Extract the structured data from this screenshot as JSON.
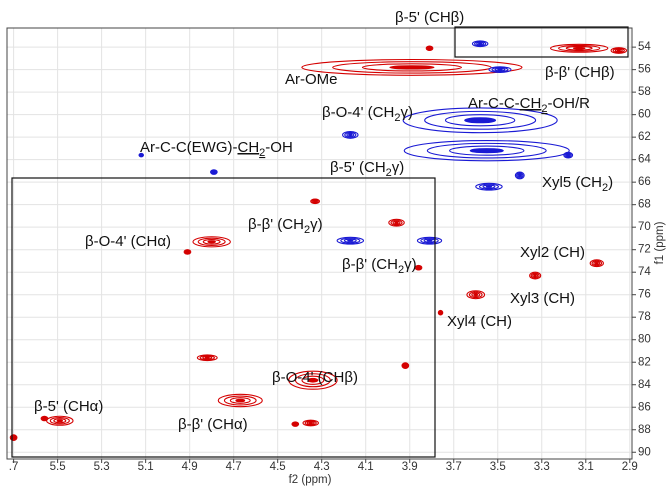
{
  "chart_data": {
    "type": "scatter",
    "xlabel": "f2 (ppm)",
    "ylabel": "f1 (ppm)",
    "xlim": [
      5.73,
      2.89
    ],
    "ylim": [
      52.3,
      90.6
    ],
    "xticks": [
      {
        "value": 5.7,
        "label": ".7"
      },
      5.5,
      5.3,
      5.1,
      4.9,
      4.7,
      4.5,
      4.3,
      4.1,
      3.9,
      3.7,
      3.5,
      3.3,
      3.1,
      2.9
    ],
    "yticks": [
      54,
      56,
      58,
      60,
      62,
      64,
      66,
      68,
      70,
      72,
      74,
      76,
      78,
      80,
      82,
      84,
      86,
      88,
      90
    ],
    "grid": true,
    "series": [
      {
        "color": "#d40000",
        "x": [
          3.89,
          3.81,
          3.13,
          2.95,
          4.8,
          4.91,
          4.33,
          3.96,
          3.86,
          3.05,
          3.33,
          3.6,
          3.76,
          4.82,
          3.92,
          4.34,
          4.67,
          5.49,
          5.56,
          4.35,
          4.42,
          5.7
        ],
        "y": [
          55.8,
          54.1,
          54.1,
          54.3,
          71.3,
          72.2,
          67.7,
          69.6,
          73.6,
          73.2,
          74.3,
          76.0,
          77.6,
          81.6,
          82.3,
          83.6,
          85.4,
          87.2,
          87.0,
          87.4,
          87.5,
          88.7
        ],
        "dx": [
          1.0,
          0.03,
          0.26,
          0.07,
          0.17,
          0.03,
          0.04,
          0.07,
          0.03,
          0.06,
          0.05,
          0.08,
          0.02,
          0.09,
          0.03,
          0.22,
          0.2,
          0.12,
          0.03,
          0.07,
          0.03,
          0.03
        ],
        "dy": [
          1.4,
          0.4,
          0.7,
          0.5,
          0.9,
          0.4,
          0.4,
          0.6,
          0.4,
          0.6,
          0.6,
          0.7,
          0.4,
          0.5,
          0.5,
          1.6,
          1.1,
          0.8,
          0.4,
          0.5,
          0.4,
          0.5
        ]
      },
      {
        "color": "#1a1ad4",
        "x": [
          3.58,
          3.49,
          3.58,
          3.55,
          4.17,
          3.54,
          3.4,
          3.18,
          4.79,
          5.12,
          4.17,
          3.81
        ],
        "y": [
          53.7,
          56.0,
          60.5,
          63.2,
          61.8,
          66.4,
          65.4,
          63.6,
          65.1,
          63.6,
          71.2,
          71.2
        ],
        "dx": [
          0.07,
          0.1,
          0.7,
          0.75,
          0.07,
          0.12,
          0.04,
          0.04,
          0.03,
          0.02,
          0.12,
          0.11
        ],
        "dy": [
          0.5,
          0.5,
          2.2,
          1.8,
          0.6,
          0.6,
          0.6,
          0.5,
          0.4,
          0.3,
          0.6,
          0.6
        ]
      }
    ],
    "annotations": [
      [
        "β-5' (CHβ)"
      ],
      [
        "Ar-OMe"
      ],
      [
        "β-β' (CHβ)"
      ],
      [
        "β-O-4' (CH",
        "2",
        "γ)"
      ],
      [
        "Ar-C-C-",
        "CH",
        "2",
        "-OH/R"
      ],
      [
        "Ar-C-C(EWG)-",
        "CH",
        "2",
        "-OH"
      ],
      [
        "β-5' (CH",
        "2",
        "γ)"
      ],
      [
        "Xyl5 (CH",
        "2",
        ")"
      ],
      [
        "β-β' (CH",
        "2",
        "γ)"
      ],
      [
        "β-O-4' (CHα)"
      ],
      [
        "β-β' (CH",
        "2",
        "γ)"
      ],
      [
        "Xyl2 (CH)"
      ],
      [
        "Xyl3 (CH)"
      ],
      [
        "Xyl4 (CH)"
      ],
      [
        "β-O-4' (CHβ)"
      ],
      [
        "β-5' (CHα)"
      ],
      [
        "β-β' (CHα)"
      ]
    ]
  }
}
